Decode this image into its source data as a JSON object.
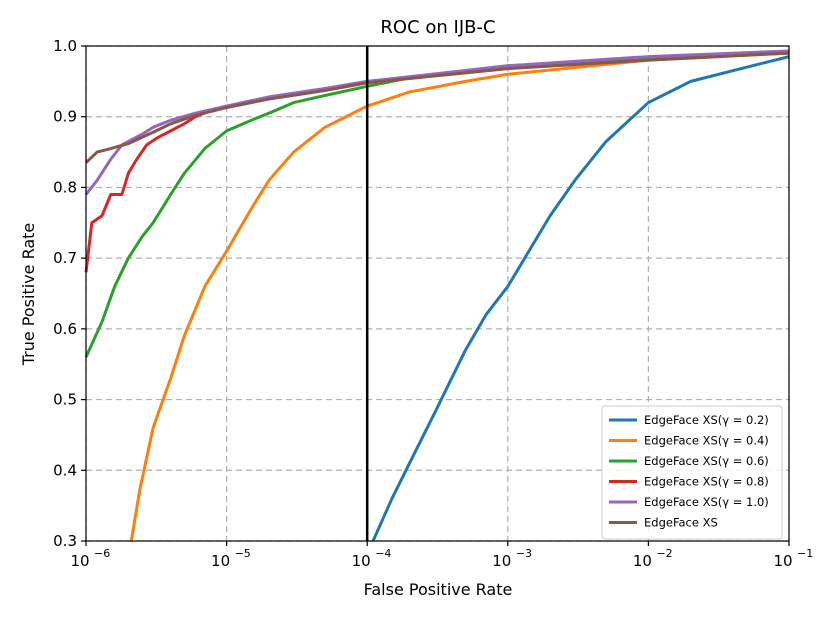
{
  "chart_data": {
    "type": "line",
    "title": "ROC on IJB-C",
    "xlabel": "False Positive Rate",
    "ylabel": "True Positive Rate",
    "xscale": "log",
    "xlim": [
      1e-06,
      0.1
    ],
    "ylim": [
      0.3,
      1.0
    ],
    "x_ticks": [
      {
        "value": 1e-06,
        "base": "10",
        "exp": "−6"
      },
      {
        "value": 1e-05,
        "base": "10",
        "exp": "−5"
      },
      {
        "value": 0.0001,
        "base": "10",
        "exp": "−4"
      },
      {
        "value": 0.001,
        "base": "10",
        "exp": "−3"
      },
      {
        "value": 0.01,
        "base": "10",
        "exp": "−2"
      },
      {
        "value": 0.1,
        "base": "10",
        "exp": "−1"
      }
    ],
    "y_ticks": [
      {
        "value": 0.3,
        "label": "0.3"
      },
      {
        "value": 0.4,
        "label": "0.4"
      },
      {
        "value": 0.5,
        "label": "0.5"
      },
      {
        "value": 0.6,
        "label": "0.6"
      },
      {
        "value": 0.7,
        "label": "0.7"
      },
      {
        "value": 0.8,
        "label": "0.8"
      },
      {
        "value": 0.9,
        "label": "0.9"
      },
      {
        "value": 1.0,
        "label": "1.0"
      }
    ],
    "grid": true,
    "reference_line": {
      "x": 0.0001,
      "color": "#000000"
    },
    "legend_position": "lower right",
    "series": [
      {
        "name": "EdgeFace XS(γ = 0.2)",
        "color": "#1f77b4",
        "points": [
          [
            0.00011,
            0.3
          ],
          [
            0.00015,
            0.36
          ],
          [
            0.0002,
            0.41
          ],
          [
            0.0003,
            0.48
          ],
          [
            0.0005,
            0.57
          ],
          [
            0.0007,
            0.62
          ],
          [
            0.001,
            0.66
          ],
          [
            0.002,
            0.76
          ],
          [
            0.003,
            0.81
          ],
          [
            0.005,
            0.865
          ],
          [
            0.01,
            0.92
          ],
          [
            0.02,
            0.95
          ],
          [
            0.05,
            0.97
          ],
          [
            0.1,
            0.985
          ]
        ]
      },
      {
        "name": "EdgeFace XS(γ = 0.4)",
        "color": "#ff7f0e",
        "points": [
          [
            2.1e-06,
            0.3
          ],
          [
            2.4e-06,
            0.37
          ],
          [
            3e-06,
            0.46
          ],
          [
            4e-06,
            0.53
          ],
          [
            5e-06,
            0.59
          ],
          [
            7e-06,
            0.66
          ],
          [
            1e-05,
            0.71
          ],
          [
            1.5e-05,
            0.77
          ],
          [
            2e-05,
            0.81
          ],
          [
            3e-05,
            0.85
          ],
          [
            5e-05,
            0.885
          ],
          [
            0.0001,
            0.915
          ],
          [
            0.0002,
            0.935
          ],
          [
            0.0005,
            0.95
          ],
          [
            0.001,
            0.96
          ],
          [
            0.01,
            0.98
          ],
          [
            0.1,
            0.99
          ]
        ]
      },
      {
        "name": "EdgeFace XS(γ = 0.6)",
        "color": "#2ca02c",
        "points": [
          [
            1e-06,
            0.56
          ],
          [
            1.3e-06,
            0.61
          ],
          [
            1.6e-06,
            0.66
          ],
          [
            2e-06,
            0.7
          ],
          [
            2.5e-06,
            0.73
          ],
          [
            3e-06,
            0.75
          ],
          [
            4e-06,
            0.79
          ],
          [
            5e-06,
            0.82
          ],
          [
            7e-06,
            0.855
          ],
          [
            1e-05,
            0.88
          ],
          [
            1.5e-05,
            0.895
          ],
          [
            2e-05,
            0.905
          ],
          [
            3e-05,
            0.92
          ],
          [
            5e-05,
            0.93
          ],
          [
            0.0001,
            0.943
          ],
          [
            0.0002,
            0.955
          ],
          [
            0.0005,
            0.965
          ],
          [
            0.001,
            0.972
          ],
          [
            0.01,
            0.982
          ],
          [
            0.1,
            0.99
          ]
        ]
      },
      {
        "name": "EdgeFace XS(γ = 0.8)",
        "color": "#d62728",
        "points": [
          [
            1e-06,
            0.68
          ],
          [
            1.1e-06,
            0.75
          ],
          [
            1.3e-06,
            0.76
          ],
          [
            1.5e-06,
            0.79
          ],
          [
            1.8e-06,
            0.79
          ],
          [
            2e-06,
            0.82
          ],
          [
            2.3e-06,
            0.84
          ],
          [
            2.7e-06,
            0.86
          ],
          [
            3.2e-06,
            0.87
          ],
          [
            4e-06,
            0.88
          ],
          [
            5e-06,
            0.89
          ],
          [
            6e-06,
            0.9
          ],
          [
            8e-06,
            0.91
          ],
          [
            1e-05,
            0.915
          ]
        ]
      },
      {
        "name": "EdgeFace XS(γ = 1.0)",
        "color": "#9467bd",
        "points": [
          [
            1e-06,
            0.79
          ],
          [
            1.2e-06,
            0.81
          ],
          [
            1.5e-06,
            0.84
          ],
          [
            1.8e-06,
            0.86
          ],
          [
            2e-06,
            0.865
          ],
          [
            2.5e-06,
            0.875
          ],
          [
            3e-06,
            0.885
          ],
          [
            4e-06,
            0.895
          ],
          [
            6e-06,
            0.905
          ],
          [
            1e-05,
            0.915
          ],
          [
            2e-05,
            0.928
          ],
          [
            5e-05,
            0.94
          ],
          [
            0.0001,
            0.95
          ],
          [
            0.001,
            0.972
          ],
          [
            0.01,
            0.985
          ],
          [
            0.1,
            0.993
          ]
        ]
      },
      {
        "name": "EdgeFace XS",
        "color": "#8c564b",
        "points": [
          [
            1e-06,
            0.835
          ],
          [
            1.2e-06,
            0.85
          ],
          [
            1.5e-06,
            0.855
          ],
          [
            2e-06,
            0.862
          ],
          [
            3e-06,
            0.878
          ],
          [
            4e-06,
            0.89
          ],
          [
            6e-06,
            0.902
          ],
          [
            1e-05,
            0.913
          ],
          [
            2e-05,
            0.925
          ],
          [
            5e-05,
            0.937
          ],
          [
            0.0001,
            0.948
          ],
          [
            0.001,
            0.968
          ],
          [
            0.01,
            0.98
          ],
          [
            0.1,
            0.99
          ]
        ]
      }
    ]
  }
}
